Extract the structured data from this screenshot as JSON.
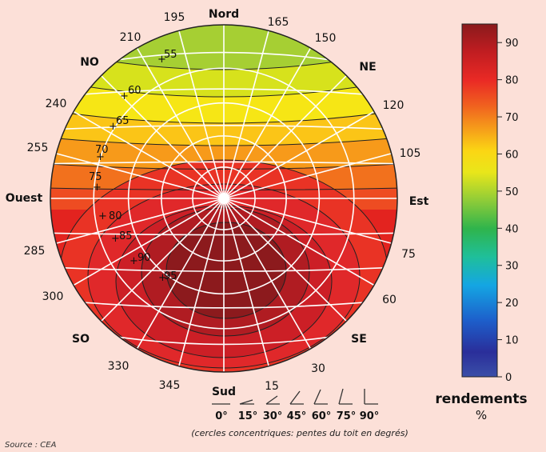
{
  "diagram": {
    "cardinals": {
      "north": "Nord",
      "south": "Sud",
      "east": "Est",
      "west": "Ouest"
    },
    "intercardinals": {
      "ne": "NE",
      "no": "NO",
      "se": "SE",
      "so": "SO"
    },
    "azimuth_labels": [
      "195",
      "165",
      "210",
      "150",
      "240",
      "120",
      "255",
      "105",
      "285",
      "75",
      "300",
      "60",
      "330",
      "30",
      "345",
      "15"
    ],
    "isoline_labels": [
      "55",
      "60",
      "65",
      "70",
      "75",
      "80",
      "85",
      "90",
      "95"
    ],
    "caption": "(cercles concentriques: pentes du toit en degrés)",
    "source": "Source : CEA"
  },
  "slope_legend": {
    "labels": [
      "0°",
      "15°",
      "30°",
      "45°",
      "60°",
      "75°",
      "90°"
    ]
  },
  "colorbar": {
    "title": "rendements",
    "unit": "%",
    "ticks": [
      "90",
      "80",
      "70",
      "60",
      "50",
      "40",
      "30",
      "20",
      "10",
      "0"
    ],
    "min": 0,
    "max": 95,
    "colors": [
      "#2a52a8",
      "#1e3fa8",
      "#2d2d9e",
      "#1f6fd0",
      "#16a6e0",
      "#15c0c8",
      "#2ab760",
      "#4cb748",
      "#8fcf3a",
      "#d4e21f",
      "#f6ec14",
      "#fbd713",
      "#f7a619",
      "#f26a1e",
      "#ed2c24",
      "#d81e24",
      "#b81c20",
      "#8f1a1c"
    ]
  }
}
